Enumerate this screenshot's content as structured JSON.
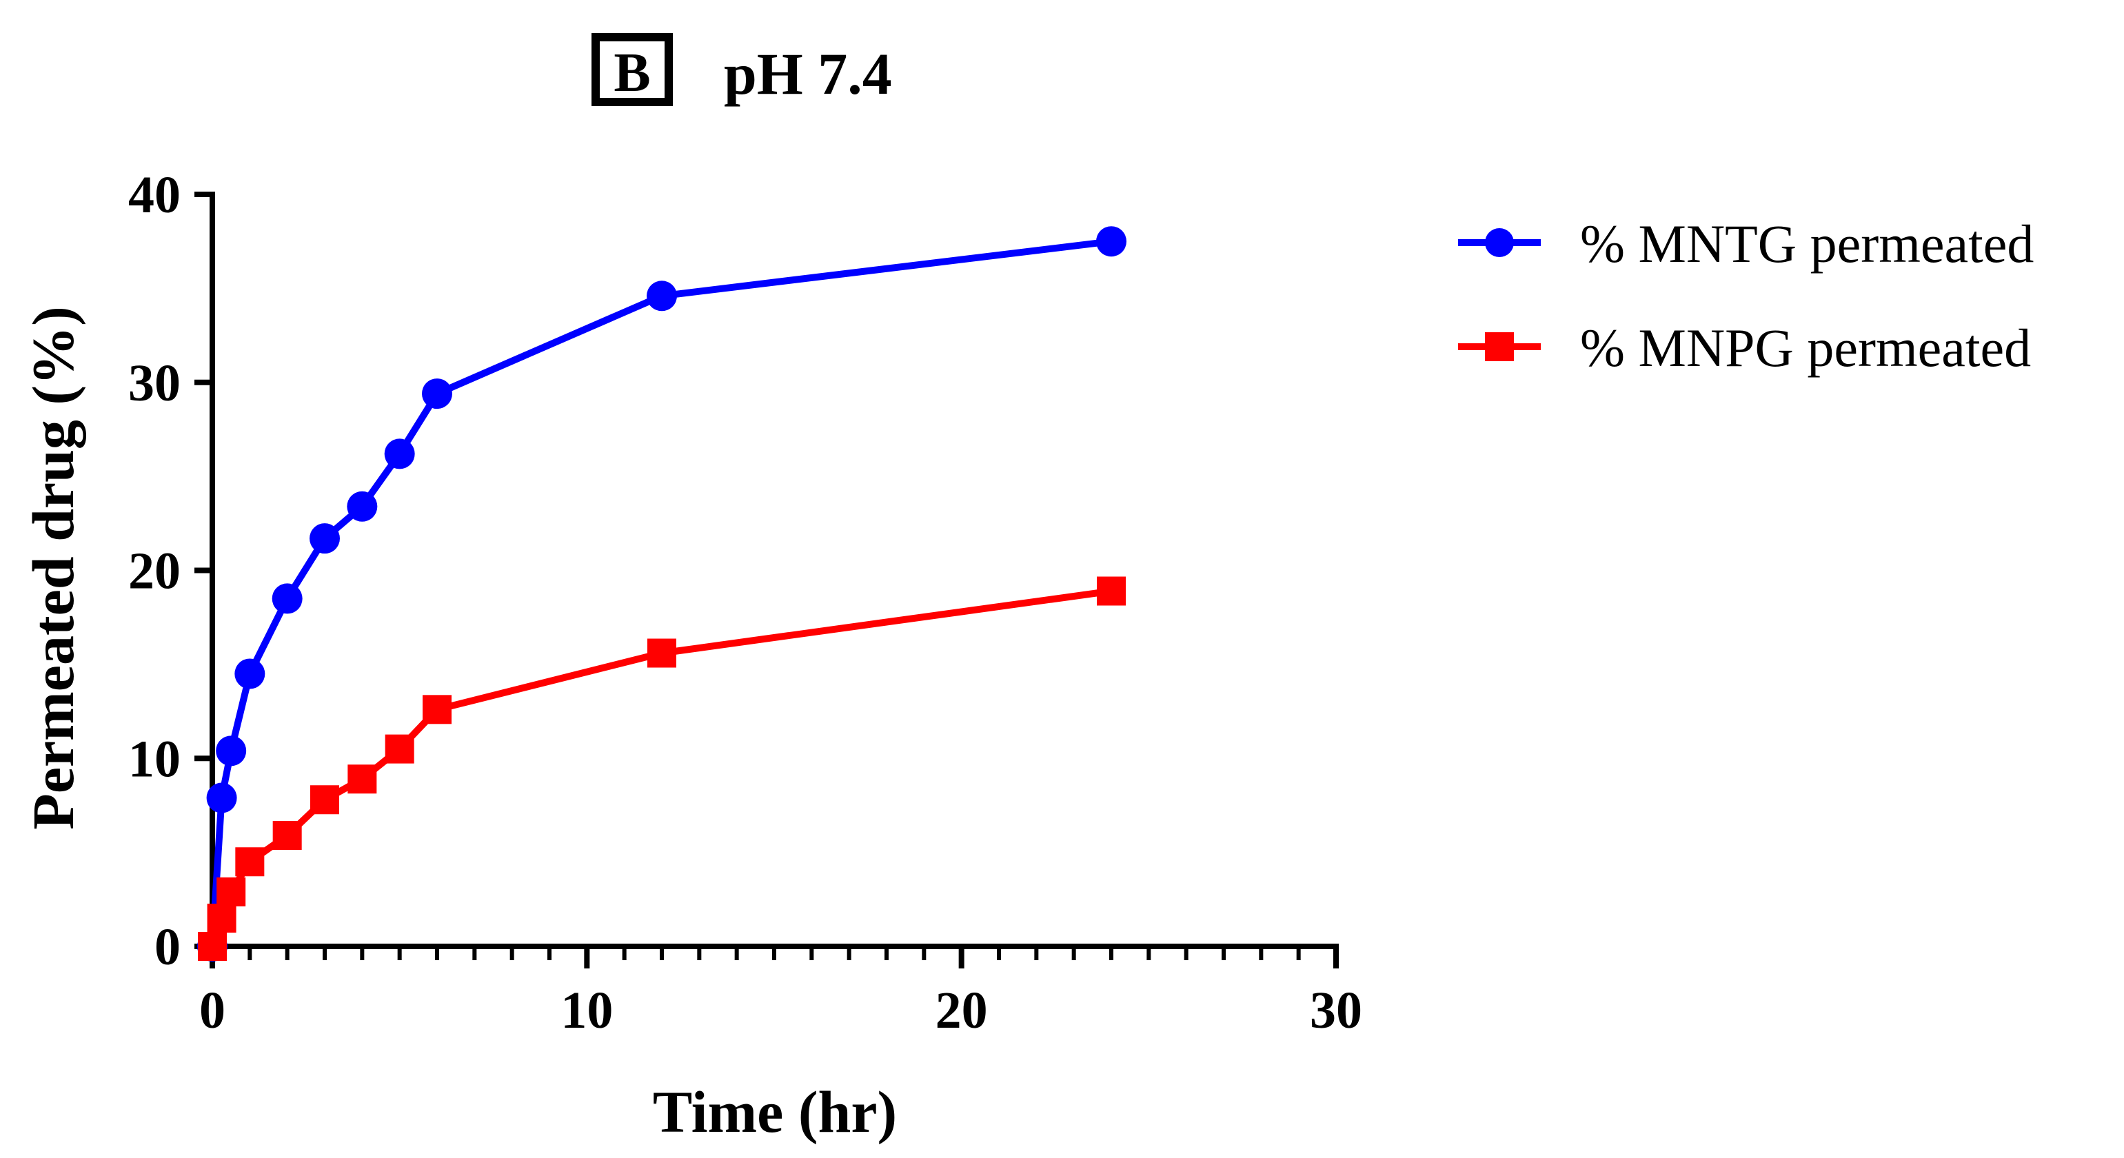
{
  "chart_data": {
    "type": "line",
    "panel_label": "B",
    "title": "pH 7.4",
    "xlabel": "Time (hr)",
    "ylabel": "Permeated drug (%)",
    "xlim": [
      0,
      30
    ],
    "ylim": [
      0,
      40
    ],
    "x_ticks": [
      0,
      10,
      20,
      30
    ],
    "y_ticks": [
      0,
      10,
      20,
      30,
      40
    ],
    "x_minor_step": 1,
    "grid": false,
    "legend_position": "right",
    "series": [
      {
        "name": "% MNTG permeated",
        "marker": "circle",
        "color": "#0000ff",
        "x": [
          0,
          0.25,
          0.5,
          1,
          2,
          3,
          4,
          5,
          6,
          12,
          24
        ],
        "y": [
          0,
          7.9,
          10.4,
          14.5,
          18.5,
          21.7,
          23.4,
          26.2,
          29.4,
          34.6,
          37.5
        ]
      },
      {
        "name": "% MNPG permeated",
        "marker": "square",
        "color": "#ff0000",
        "x": [
          0,
          0.25,
          0.5,
          1,
          2,
          3,
          4,
          5,
          6,
          12,
          24
        ],
        "y": [
          0,
          1.5,
          2.9,
          4.5,
          5.9,
          7.8,
          8.9,
          10.5,
          12.6,
          15.6,
          18.9
        ]
      }
    ]
  }
}
